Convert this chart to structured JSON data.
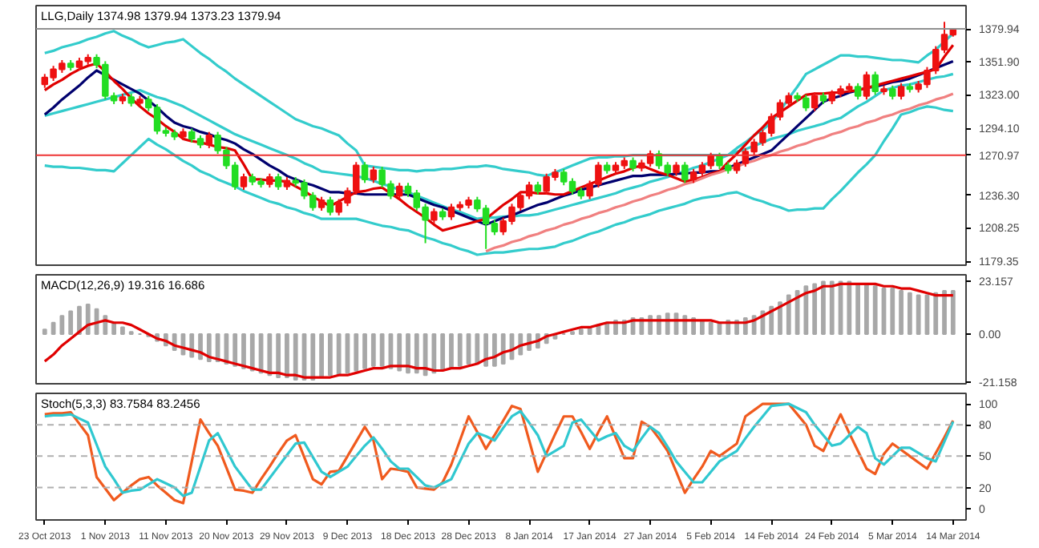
{
  "chart_data": [
    {
      "type": "candlestick",
      "title": "LLG,Daily 1374.98 1379.94 1373.23 1379.94",
      "tick_labels": "y",
      "categories": [
        null,
        null,
        null,
        null,
        null,
        null,
        null,
        null,
        null,
        null,
        null,
        null,
        null,
        null,
        null,
        null,
        null,
        null,
        null,
        null,
        null,
        null,
        null,
        null,
        null,
        null,
        null,
        null,
        null,
        null,
        null,
        null,
        null,
        null,
        null,
        null,
        null,
        null,
        null,
        null,
        null,
        null,
        null,
        null,
        null,
        null,
        null,
        null,
        null,
        null,
        null,
        null,
        null,
        null,
        null,
        null,
        null,
        null,
        null,
        null,
        null,
        null,
        null,
        null,
        null,
        null,
        null,
        null,
        null,
        null,
        null,
        null,
        null,
        null,
        null,
        null,
        null,
        null,
        null,
        null,
        null,
        null,
        null,
        null,
        null,
        null,
        null,
        null,
        null,
        null,
        null,
        null,
        null,
        null,
        null,
        null,
        null,
        null,
        null,
        null,
        null,
        null,
        null,
        null,
        null,
        null
      ],
      "ylim": [
        1176,
        1400
      ],
      "yticks": [
        {
          "value": 1179.35,
          "label": "1179.35"
        },
        {
          "value": 1208.25,
          "label": "1208.25"
        },
        {
          "value": 1236.3,
          "label": "1236.30"
        },
        {
          "value": 1294.1,
          "label": "1294.10"
        },
        {
          "value": 1323.0,
          "label": "1323.00"
        },
        {
          "value": 1351.9,
          "label": "1351.90"
        }
      ],
      "ohlc": [
        [
          1332,
          1341,
          1329,
          1338
        ],
        [
          1338,
          1348,
          1335,
          1345
        ],
        [
          1345,
          1353,
          1342,
          1350
        ],
        [
          1350,
          1353,
          1344,
          1347
        ],
        [
          1347,
          1355,
          1344,
          1352
        ],
        [
          1352,
          1358,
          1349,
          1355
        ],
        [
          1355,
          1358,
          1346,
          1349
        ],
        [
          1349,
          1352,
          1319,
          1322
        ],
        [
          1322,
          1325,
          1315,
          1318
        ],
        [
          1318,
          1324,
          1315,
          1321
        ],
        [
          1321,
          1324,
          1313,
          1316
        ],
        [
          1316,
          1322,
          1313,
          1319
        ],
        [
          1319,
          1322,
          1309,
          1312
        ],
        [
          1312,
          1315,
          1289,
          1292
        ],
        [
          1292,
          1295,
          1287,
          1290
        ],
        [
          1290,
          1293,
          1284,
          1287
        ],
        [
          1287,
          1294,
          1284,
          1291
        ],
        [
          1291,
          1294,
          1282,
          1285
        ],
        [
          1285,
          1288,
          1277,
          1280
        ],
        [
          1280,
          1291,
          1277,
          1288
        ],
        [
          1288,
          1291,
          1272,
          1275
        ],
        [
          1275,
          1278,
          1259,
          1262
        ],
        [
          1262,
          1265,
          1241,
          1244
        ],
        [
          1244,
          1255,
          1241,
          1252
        ],
        [
          1252,
          1255,
          1245,
          1248
        ],
        [
          1248,
          1251,
          1243,
          1246
        ],
        [
          1246,
          1255,
          1243,
          1252
        ],
        [
          1252,
          1255,
          1241,
          1244
        ],
        [
          1244,
          1252,
          1241,
          1249
        ],
        [
          1249,
          1252,
          1244,
          1247
        ],
        [
          1247,
          1250,
          1233,
          1236
        ],
        [
          1236,
          1239,
          1223,
          1226
        ],
        [
          1226,
          1235,
          1223,
          1232
        ],
        [
          1232,
          1235,
          1219,
          1222
        ],
        [
          1222,
          1233,
          1219,
          1230
        ],
        [
          1230,
          1243,
          1227,
          1240
        ],
        [
          1240,
          1265,
          1237,
          1262
        ],
        [
          1262,
          1265,
          1247,
          1250
        ],
        [
          1250,
          1261,
          1247,
          1258
        ],
        [
          1258,
          1261,
          1243,
          1246
        ],
        [
          1246,
          1249,
          1233,
          1236
        ],
        [
          1236,
          1247,
          1233,
          1244
        ],
        [
          1244,
          1247,
          1235,
          1238
        ],
        [
          1238,
          1241,
          1223,
          1226
        ],
        [
          1226,
          1229,
          1195,
          1215
        ],
        [
          1215,
          1225,
          1212,
          1222
        ],
        [
          1222,
          1225,
          1215,
          1218
        ],
        [
          1218,
          1229,
          1215,
          1226
        ],
        [
          1226,
          1231,
          1223,
          1228
        ],
        [
          1228,
          1235,
          1225,
          1232
        ],
        [
          1232,
          1235,
          1222,
          1225
        ],
        [
          1225,
          1228,
          1190,
          1212
        ],
        [
          1212,
          1215,
          1202,
          1205
        ],
        [
          1205,
          1217,
          1202,
          1214
        ],
        [
          1214,
          1229,
          1211,
          1226
        ],
        [
          1226,
          1239,
          1223,
          1236
        ],
        [
          1236,
          1248,
          1233,
          1245
        ],
        [
          1245,
          1248,
          1237,
          1240
        ],
        [
          1240,
          1255,
          1237,
          1252
        ],
        [
          1252,
          1259,
          1249,
          1256
        ],
        [
          1256,
          1259,
          1245,
          1248
        ],
        [
          1248,
          1251,
          1237,
          1240
        ],
        [
          1240,
          1243,
          1233,
          1236
        ],
        [
          1236,
          1249,
          1233,
          1246
        ],
        [
          1246,
          1265,
          1243,
          1262
        ],
        [
          1262,
          1265,
          1255,
          1258
        ],
        [
          1258,
          1265,
          1255,
          1262
        ],
        [
          1262,
          1269,
          1259,
          1266
        ],
        [
          1266,
          1269,
          1257,
          1260
        ],
        [
          1260,
          1267,
          1257,
          1264
        ],
        [
          1264,
          1275,
          1261,
          1272
        ],
        [
          1272,
          1275,
          1259,
          1262
        ],
        [
          1262,
          1265,
          1253,
          1256
        ],
        [
          1256,
          1265,
          1253,
          1262
        ],
        [
          1262,
          1265,
          1247,
          1250
        ],
        [
          1250,
          1259,
          1247,
          1256
        ],
        [
          1256,
          1265,
          1253,
          1262
        ],
        [
          1262,
          1273,
          1259,
          1270
        ],
        [
          1270,
          1273,
          1259,
          1262
        ],
        [
          1262,
          1265,
          1255,
          1258
        ],
        [
          1258,
          1267,
          1255,
          1264
        ],
        [
          1264,
          1277,
          1261,
          1274
        ],
        [
          1274,
          1285,
          1271,
          1282
        ],
        [
          1282,
          1293,
          1279,
          1290
        ],
        [
          1290,
          1307,
          1287,
          1304
        ],
        [
          1304,
          1319,
          1301,
          1316
        ],
        [
          1316,
          1325,
          1313,
          1322
        ],
        [
          1322,
          1325,
          1317,
          1320
        ],
        [
          1320,
          1323,
          1309,
          1312
        ],
        [
          1312,
          1325,
          1309,
          1322
        ],
        [
          1322,
          1325,
          1315,
          1318
        ],
        [
          1318,
          1327,
          1315,
          1324
        ],
        [
          1324,
          1331,
          1321,
          1328
        ],
        [
          1328,
          1333,
          1325,
          1330
        ],
        [
          1330,
          1333,
          1319,
          1322
        ],
        [
          1322,
          1343,
          1319,
          1340
        ],
        [
          1340,
          1343,
          1323,
          1326
        ],
        [
          1326,
          1331,
          1323,
          1328
        ],
        [
          1328,
          1331,
          1319,
          1322
        ],
        [
          1322,
          1333,
          1319,
          1330
        ],
        [
          1330,
          1333,
          1325,
          1328
        ],
        [
          1328,
          1335,
          1325,
          1332
        ],
        [
          1332,
          1347,
          1329,
          1344
        ],
        [
          1344,
          1365,
          1341,
          1362
        ],
        [
          1362,
          1386,
          1359,
          1374.98
        ],
        [
          1374.98,
          1379.94,
          1373.23,
          1379.94
        ]
      ],
      "colors": [
        "#ee1111",
        "#ee1111",
        "#ee1111",
        "#22dd22",
        "#ee1111",
        "#ee1111",
        "#22dd22",
        "#22dd22",
        "#22dd22",
        "#ee1111",
        "#22dd22",
        "#ee1111",
        "#22dd22",
        "#22dd22",
        "#22dd22",
        "#22dd22",
        "#ee1111",
        "#22dd22",
        "#22dd22",
        "#ee1111",
        "#22dd22",
        "#22dd22",
        "#22dd22",
        "#ee1111",
        "#22dd22",
        "#22dd22",
        "#ee1111",
        "#22dd22",
        "#ee1111",
        "#22dd22",
        "#22dd22",
        "#22dd22",
        "#ee1111",
        "#22dd22",
        "#ee1111",
        "#ee1111",
        "#ee1111",
        "#22dd22",
        "#ee1111",
        "#22dd22",
        "#22dd22",
        "#ee1111",
        "#22dd22",
        "#22dd22",
        "#22dd22",
        "#ee1111",
        "#22dd22",
        "#ee1111",
        "#ee1111",
        "#ee1111",
        "#22dd22",
        "#22dd22",
        "#22dd22",
        "#ee1111",
        "#ee1111",
        "#ee1111",
        "#ee1111",
        "#22dd22",
        "#ee1111",
        "#ee1111",
        "#22dd22",
        "#22dd22",
        "#22dd22",
        "#ee1111",
        "#ee1111",
        "#22dd22",
        "#ee1111",
        "#ee1111",
        "#22dd22",
        "#ee1111",
        "#ee1111",
        "#22dd22",
        "#22dd22",
        "#ee1111",
        "#22dd22",
        "#ee1111",
        "#ee1111",
        "#ee1111",
        "#22dd22",
        "#22dd22",
        "#ee1111",
        "#ee1111",
        "#ee1111",
        "#ee1111",
        "#ee1111",
        "#ee1111",
        "#ee1111",
        "#22dd22",
        "#22dd22",
        "#ee1111",
        "#22dd22",
        "#ee1111",
        "#ee1111",
        "#ee1111",
        "#22dd22",
        "#ee1111",
        "#22dd22",
        "#ee1111",
        "#22dd22",
        "#ee1111",
        "#22dd22",
        "#ee1111",
        "#ee1111",
        "#ee1111",
        "#ee1111",
        "#ee1111"
      ],
      "series": [
        {
          "type": "line",
          "color": "#33cccc",
          "values": [
            1359,
            1361,
            1364,
            1366,
            1368,
            1371,
            1373,
            1376,
            1378,
            1374,
            1371,
            1367,
            1364,
            1366,
            1368,
            1369,
            1371,
            1365,
            1359,
            1354,
            1348,
            1343,
            1337,
            1332,
            1327,
            1322,
            1317,
            1312,
            1307,
            1302,
            1299,
            1296,
            1294,
            1291,
            1288,
            1281,
            1275,
            1262,
            1261,
            1260,
            1259,
            1258,
            1258,
            1257,
            1258,
            1258,
            1259,
            1259,
            1260,
            1261,
            1261,
            1262,
            1261,
            1259,
            1258,
            1257,
            1256,
            1254,
            1253,
            1256,
            1259,
            1262,
            1265,
            1268,
            1269,
            1269,
            1270,
            1270,
            1271,
            1271,
            1271,
            1271,
            1271,
            1271,
            1271,
            1271,
            1271,
            1271,
            1271,
            1271,
            1277,
            1282,
            1288,
            1293,
            1299,
            1309,
            1320,
            1330,
            1341,
            1345,
            1349,
            1353,
            1357,
            1357,
            1356,
            1356,
            1355,
            1354,
            1353,
            1353,
            1352,
            1351,
            1357,
            1362,
            1369,
            1376
          ]
        },
        {
          "type": "line",
          "color": "#33cccc",
          "values": [
            1305,
            1307,
            1309,
            1311,
            1313,
            1315,
            1317,
            1319,
            1321,
            1323,
            1325,
            1327,
            1324,
            1321,
            1319,
            1316,
            1313,
            1309,
            1305,
            1301,
            1297,
            1293,
            1289,
            1286,
            1283,
            1280,
            1277,
            1274,
            1271,
            1268,
            1264,
            1261,
            1257,
            1256,
            1255,
            1254,
            1253,
            1251,
            1249,
            1246,
            1244,
            1241,
            1239,
            1236,
            1233,
            1230,
            1227,
            1224,
            1222,
            1219,
            1216,
            1217,
            1217,
            1218,
            1218,
            1219,
            1219,
            1220,
            1222,
            1224,
            1226,
            1228,
            1230,
            1232,
            1234,
            1236,
            1238,
            1241,
            1243,
            1245,
            1248,
            1250,
            1252,
            1255,
            1257,
            1260,
            1262,
            1265,
            1268,
            1271,
            1274,
            1276,
            1279,
            1282,
            1285,
            1287,
            1289,
            1292,
            1294,
            1296,
            1298,
            1301,
            1303,
            1308,
            1313,
            1317,
            1322,
            1327,
            1329,
            1331,
            1332,
            1334,
            1336,
            1338,
            1339,
            1341
          ]
        },
        {
          "type": "line",
          "color": "#33cccc",
          "values": [
            1262,
            1261,
            1261,
            1260,
            1260,
            1259,
            1258,
            1258,
            1257,
            1264,
            1271,
            1278,
            1285,
            1280,
            1276,
            1271,
            1266,
            1262,
            1257,
            1254,
            1250,
            1247,
            1244,
            1240,
            1237,
            1234,
            1231,
            1229,
            1226,
            1224,
            1221,
            1219,
            1216,
            1216,
            1216,
            1216,
            1216,
            1214,
            1212,
            1210,
            1209,
            1207,
            1206,
            1203,
            1200,
            1198,
            1195,
            1193,
            1190,
            1188,
            1185,
            1186,
            1187,
            1187,
            1188,
            1189,
            1190,
            1190,
            1191,
            1192,
            1195,
            1197,
            1200,
            1203,
            1205,
            1208,
            1211,
            1213,
            1216,
            1218,
            1220,
            1223,
            1225,
            1227,
            1229,
            1232,
            1234,
            1235,
            1236,
            1238,
            1239,
            1236,
            1233,
            1231,
            1228,
            1226,
            1223,
            1224,
            1224,
            1225,
            1225,
            1233,
            1240,
            1248,
            1256,
            1263,
            1271,
            1283,
            1294,
            1306,
            1308,
            1311,
            1313,
            1312,
            1310,
            1309
          ]
        },
        {
          "type": "line",
          "color": "#00006e",
          "values": [
            1306,
            1312,
            1319,
            1325,
            1331,
            1338,
            1344,
            1340,
            1336,
            1332,
            1328,
            1324,
            1318,
            1312,
            1305,
            1299,
            1296,
            1294,
            1291,
            1289,
            1286,
            1284,
            1281,
            1276,
            1272,
            1267,
            1262,
            1258,
            1253,
            1250,
            1247,
            1245,
            1242,
            1239,
            1239,
            1238,
            1238,
            1237,
            1237,
            1237,
            1237,
            1237,
            1237,
            1234,
            1231,
            1228,
            1226,
            1223,
            1220,
            1217,
            1214,
            1211,
            1214,
            1217,
            1219,
            1222,
            1225,
            1228,
            1230,
            1233,
            1236,
            1238,
            1241,
            1243,
            1245,
            1247,
            1249,
            1251,
            1253,
            1253,
            1254,
            1254,
            1254,
            1255,
            1255,
            1256,
            1256,
            1257,
            1257,
            1260,
            1263,
            1266,
            1269,
            1272,
            1275,
            1282,
            1289,
            1296,
            1303,
            1310,
            1317,
            1320,
            1322,
            1325,
            1327,
            1329,
            1330,
            1332,
            1334,
            1335,
            1337,
            1340,
            1343,
            1346,
            1349,
            1352
          ]
        },
        {
          "type": "line",
          "color": "#e00000",
          "values": [
            1327,
            1332,
            1336,
            1341,
            1345,
            1348,
            1350,
            1343,
            1335,
            1328,
            1320,
            1313,
            1307,
            1302,
            1296,
            1291,
            1285,
            1283,
            1282,
            1280,
            1278,
            1277,
            1275,
            1263,
            1250,
            1250,
            1249,
            1249,
            1248,
            1244,
            1240,
            1235,
            1231,
            1227,
            1231,
            1235,
            1239,
            1240,
            1242,
            1243,
            1238,
            1233,
            1227,
            1222,
            1217,
            1211,
            1206,
            1208,
            1210,
            1212,
            1214,
            1216,
            1222,
            1228,
            1233,
            1239,
            1239,
            1238,
            1238,
            1237,
            1237,
            1240,
            1243,
            1246,
            1249,
            1252,
            1255,
            1257,
            1260,
            1262,
            1259,
            1256,
            1254,
            1251,
            1248,
            1250,
            1252,
            1255,
            1257,
            1265,
            1272,
            1280,
            1288,
            1295,
            1303,
            1308,
            1313,
            1318,
            1323,
            1324,
            1324,
            1325,
            1325,
            1326,
            1327,
            1329,
            1331,
            1333,
            1335,
            1337,
            1339,
            1341,
            1343,
            1345,
            1356,
            1366
          ]
        },
        {
          "type": "line",
          "color": "#f08080",
          "values": [
            null,
            null,
            null,
            null,
            null,
            null,
            null,
            null,
            null,
            null,
            null,
            null,
            null,
            null,
            null,
            null,
            null,
            null,
            null,
            null,
            null,
            null,
            null,
            null,
            null,
            null,
            null,
            null,
            null,
            null,
            null,
            null,
            null,
            null,
            null,
            null,
            null,
            null,
            null,
            null,
            null,
            null,
            null,
            null,
            null,
            null,
            null,
            null,
            null,
            null,
            null,
            1188,
            1191,
            1193,
            1196,
            1198,
            1201,
            1203,
            1206,
            1208,
            1211,
            1213,
            1216,
            1218,
            1221,
            1223,
            1226,
            1228,
            1231,
            1233,
            1236,
            1238,
            1241,
            1243,
            1246,
            1248,
            1251,
            1254,
            1256,
            1259,
            1261,
            1264,
            1266,
            1269,
            1271,
            1274,
            1276,
            1279,
            1281,
            1284,
            1286,
            1289,
            1291,
            1294,
            1296,
            1299,
            1301,
            1304,
            1306,
            1309,
            1311,
            1314,
            1316,
            1319,
            1321,
            1324
          ]
        }
      ],
      "ref_lines": [
        {
          "axis": "y",
          "value": 1270.97,
          "label": "1270.97",
          "color": "#ee3333"
        },
        {
          "axis": "y",
          "value": 1379.94,
          "label": "1379.94",
          "color": "#909090"
        }
      ]
    },
    {
      "type": "bar",
      "title": "MACD(12,26,9) 19.316 16.686",
      "tick_labels": "y",
      "categories": [
        null,
        null,
        null,
        null,
        null,
        null,
        null,
        null,
        null,
        null,
        null,
        null,
        null,
        null,
        null,
        null,
        null,
        null,
        null,
        null,
        null,
        null,
        null,
        null,
        null,
        null,
        null,
        null,
        null,
        null,
        null,
        null,
        null,
        null,
        null,
        null,
        null,
        null,
        null,
        null,
        null,
        null,
        null,
        null,
        null,
        null,
        null,
        null,
        null,
        null,
        null,
        null,
        null,
        null,
        null,
        null,
        null,
        null,
        null,
        null,
        null,
        null,
        null,
        null,
        null,
        null,
        null,
        null,
        null,
        null,
        null,
        null,
        null,
        null,
        null,
        null,
        null,
        null,
        null,
        null,
        null,
        null,
        null,
        null,
        null,
        null,
        null,
        null,
        null,
        null,
        null,
        null,
        null,
        null,
        null,
        null,
        null,
        null,
        null,
        null,
        null,
        null,
        null,
        null,
        null,
        null
      ],
      "ylim": [
        -21.8,
        26
      ],
      "yticks": [
        23.157,
        {
          "value": 0,
          "label": "0.00"
        },
        -21.158
      ],
      "series": [
        {
          "type": "bar",
          "color": "#a8a8a8",
          "values": [
            2,
            5,
            8,
            10,
            12,
            13,
            11,
            8,
            5,
            3,
            1,
            0,
            -1,
            -3,
            -5,
            -7,
            -9,
            -10,
            -11,
            -12,
            -12,
            -13,
            -14,
            -15,
            -16,
            -17,
            -18,
            -19,
            -19,
            -20,
            -20,
            -20,
            -19,
            -18,
            -18,
            -17,
            -16,
            -15,
            -14,
            -14,
            -15,
            -16,
            -17,
            -17,
            -18,
            -17,
            -16,
            -15,
            -14,
            -13,
            -13,
            -14,
            -14,
            -13,
            -11,
            -9,
            -7,
            -6,
            -4,
            -2,
            0,
            1,
            2,
            3,
            4,
            5,
            6,
            6,
            7,
            7,
            8,
            8,
            9,
            9,
            8,
            7,
            6,
            5,
            5,
            6,
            6,
            7,
            8,
            10,
            12,
            14,
            17,
            19,
            21,
            22,
            23,
            23,
            23,
            23,
            22,
            22,
            21,
            20,
            20,
            19,
            18,
            17,
            17,
            18,
            19,
            19
          ]
        },
        {
          "type": "line",
          "color": "#e00000",
          "values": [
            -12,
            -9,
            -5,
            -2,
            1,
            4,
            5,
            6,
            5,
            5,
            4,
            2,
            0,
            -2,
            -3,
            -5,
            -6,
            -7,
            -8,
            -10,
            -11,
            -12,
            -13,
            -14,
            -15,
            -16,
            -17,
            -17,
            -18,
            -18,
            -19,
            -19,
            -19,
            -19,
            -18,
            -18,
            -17,
            -16,
            -15,
            -15,
            -14,
            -14,
            -14,
            -15,
            -15,
            -16,
            -16,
            -15,
            -15,
            -14,
            -13,
            -11,
            -10,
            -8,
            -7,
            -5,
            -4,
            -3,
            -1,
            0,
            1,
            2,
            3,
            3,
            4,
            5,
            5,
            5,
            6,
            6,
            6,
            6,
            6,
            6,
            6,
            6,
            6,
            6,
            5,
            5,
            5,
            5,
            6,
            8,
            10,
            12,
            14,
            16,
            18,
            19,
            21,
            21,
            22,
            22,
            22,
            22,
            22,
            21,
            21,
            20,
            20,
            19,
            18,
            17,
            17,
            17
          ]
        }
      ]
    },
    {
      "type": "line",
      "title": "Stoch(5,3,3) 83.7584 83.2456",
      "categories": [
        "23 Oct 2013",
        null,
        null,
        null,
        null,
        null,
        null,
        "1 Nov 2013",
        null,
        null,
        null,
        null,
        null,
        null,
        "11 Nov 2013",
        null,
        null,
        null,
        null,
        null,
        null,
        "20 Nov 2013",
        null,
        null,
        null,
        null,
        null,
        null,
        "29 Nov 2013",
        null,
        null,
        null,
        null,
        null,
        null,
        "9 Dec 2013",
        null,
        null,
        null,
        null,
        null,
        null,
        "18 Dec 2013",
        null,
        null,
        null,
        null,
        null,
        null,
        "28 Dec 2013",
        null,
        null,
        null,
        null,
        null,
        null,
        "8 Jan 2014",
        null,
        null,
        null,
        null,
        null,
        null,
        "17 Jan 2014",
        null,
        null,
        null,
        null,
        null,
        null,
        "27 Jan 2014",
        null,
        null,
        null,
        null,
        null,
        null,
        "5 Feb 2014",
        null,
        null,
        null,
        null,
        null,
        null,
        "14 Feb 2014",
        null,
        null,
        null,
        null,
        null,
        null,
        "24 Feb 2014",
        null,
        null,
        null,
        null,
        null,
        null,
        "5 Mar 2014",
        null,
        null,
        null,
        null,
        null,
        null,
        "14 Mar 2014"
      ],
      "ylim": [
        -11,
        110
      ],
      "yticks": [
        0,
        20,
        50,
        80,
        100
      ],
      "series": [
        {
          "color": "#f05a1e",
          "values": [
            90,
            91,
            91,
            92,
            81,
            70,
            30,
            19,
            8,
            15,
            22,
            28,
            30,
            22,
            15,
            8,
            5,
            45,
            85,
            72,
            60,
            39,
            18,
            17,
            15,
            28,
            40,
            53,
            65,
            70,
            49,
            28,
            23,
            35,
            36,
            50,
            64,
            78,
            65,
            28,
            38,
            37,
            35,
            20,
            19,
            18,
            25,
            42,
            65,
            88,
            73,
            57,
            70,
            84,
            98,
            95,
            65,
            35,
            53,
            71,
            88,
            88,
            73,
            57,
            73,
            88,
            68,
            48,
            48,
            83,
            78,
            67,
            55,
            35,
            15,
            28,
            40,
            55,
            50,
            56,
            62,
            88,
            94,
            100,
            100,
            100,
            100,
            90,
            80,
            60,
            55,
            73,
            90,
            72,
            55,
            38,
            33,
            52,
            62,
            56,
            50,
            44,
            38,
            53,
            68,
            84
          ]
        },
        {
          "color": "#30c8d0",
          "values": [
            88,
            89,
            89,
            90,
            86,
            82,
            61,
            40,
            28,
            15,
            17,
            18,
            23,
            28,
            24,
            20,
            12,
            15,
            40,
            65,
            72,
            56,
            40,
            29,
            18,
            18,
            29,
            40,
            51,
            62,
            63,
            49,
            35,
            30,
            35,
            40,
            50,
            60,
            68,
            57,
            45,
            38,
            38,
            30,
            22,
            20,
            24,
            28,
            45,
            62,
            72,
            69,
            65,
            77,
            88,
            93,
            82,
            70,
            50,
            55,
            60,
            82,
            85,
            75,
            65,
            69,
            72,
            60,
            55,
            67,
            78,
            72,
            59,
            45,
            35,
            25,
            25,
            35,
            45,
            50,
            55,
            67,
            78,
            88,
            98,
            99,
            100,
            96,
            92,
            80,
            70,
            60,
            62,
            70,
            78,
            72,
            48,
            42,
            50,
            58,
            58,
            53,
            48,
            45,
            64,
            83
          ]
        }
      ],
      "ref_lines": [
        {
          "axis": "y",
          "value": 20,
          "color": "#b0b0b0",
          "line_style": "dashed"
        },
        {
          "axis": "y",
          "value": 50,
          "color": "#b0b0b0",
          "line_style": "dashed"
        },
        {
          "axis": "y",
          "value": 80,
          "color": "#b0b0b0",
          "line_style": "dashed"
        }
      ]
    }
  ]
}
